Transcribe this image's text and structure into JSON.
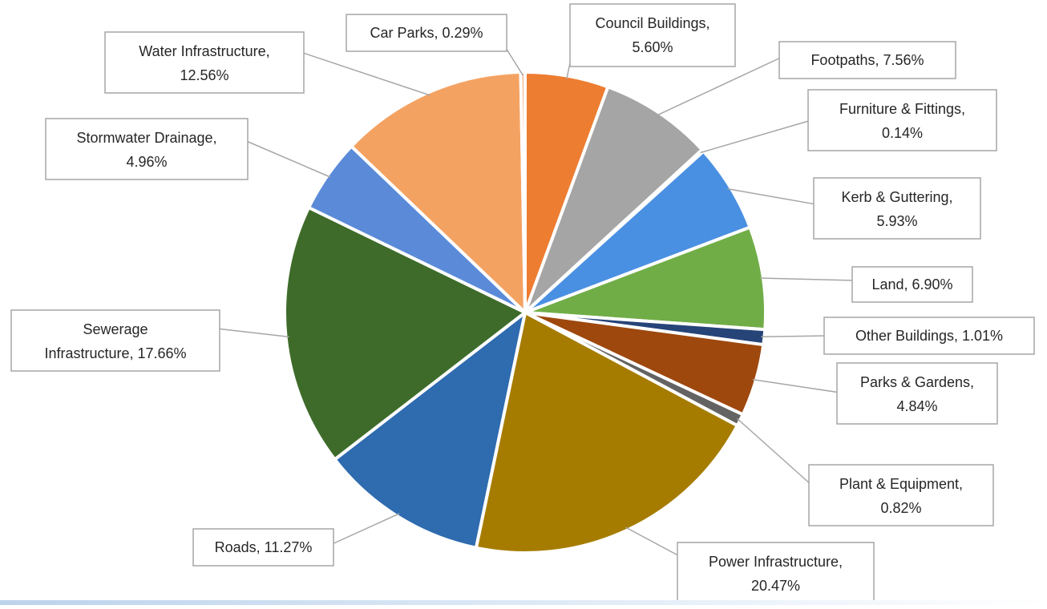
{
  "chart_data": {
    "type": "pie",
    "title": "",
    "legend": "none",
    "slices": [
      {
        "label": "Council Buildings",
        "value": 5.6,
        "display": "5.60%",
        "color": "#ED7D31"
      },
      {
        "label": "Footpaths",
        "value": 7.56,
        "display": "7.56%",
        "color": "#A5A5A5"
      },
      {
        "label": "Furniture & Fittings",
        "value": 0.14,
        "display": "0.14%",
        "color": "#FFC000"
      },
      {
        "label": "Kerb & Guttering",
        "value": 5.93,
        "display": "5.93%",
        "color": "#4A90E2"
      },
      {
        "label": "Land",
        "value": 6.9,
        "display": "6.90%",
        "color": "#70AD47"
      },
      {
        "label": "Other Buildings",
        "value": 1.01,
        "display": "1.01%",
        "color": "#264478"
      },
      {
        "label": "Parks & Gardens",
        "value": 4.84,
        "display": "4.84%",
        "color": "#9E480E"
      },
      {
        "label": "Plant & Equipment",
        "value": 0.82,
        "display": "0.82%",
        "color": "#636363"
      },
      {
        "label": "Power Infrastructure",
        "value": 20.47,
        "display": "20.47%",
        "color": "#A67C00"
      },
      {
        "label": "Roads",
        "value": 11.27,
        "display": "11.27%",
        "color": "#2E6BAF"
      },
      {
        "label": "Sewerage Infrastructure",
        "value": 17.66,
        "display": "17.66%",
        "color": "#3E6B2A"
      },
      {
        "label": "Stormwater Drainage",
        "value": 4.96,
        "display": "4.96%",
        "color": "#5B8BD8"
      },
      {
        "label": "Water Infrastructure",
        "value": 12.56,
        "display": "12.56%",
        "color": "#F4A262"
      },
      {
        "label": "Car Parks",
        "value": 0.29,
        "display": "0.29%",
        "color": "#F4B183"
      }
    ]
  }
}
